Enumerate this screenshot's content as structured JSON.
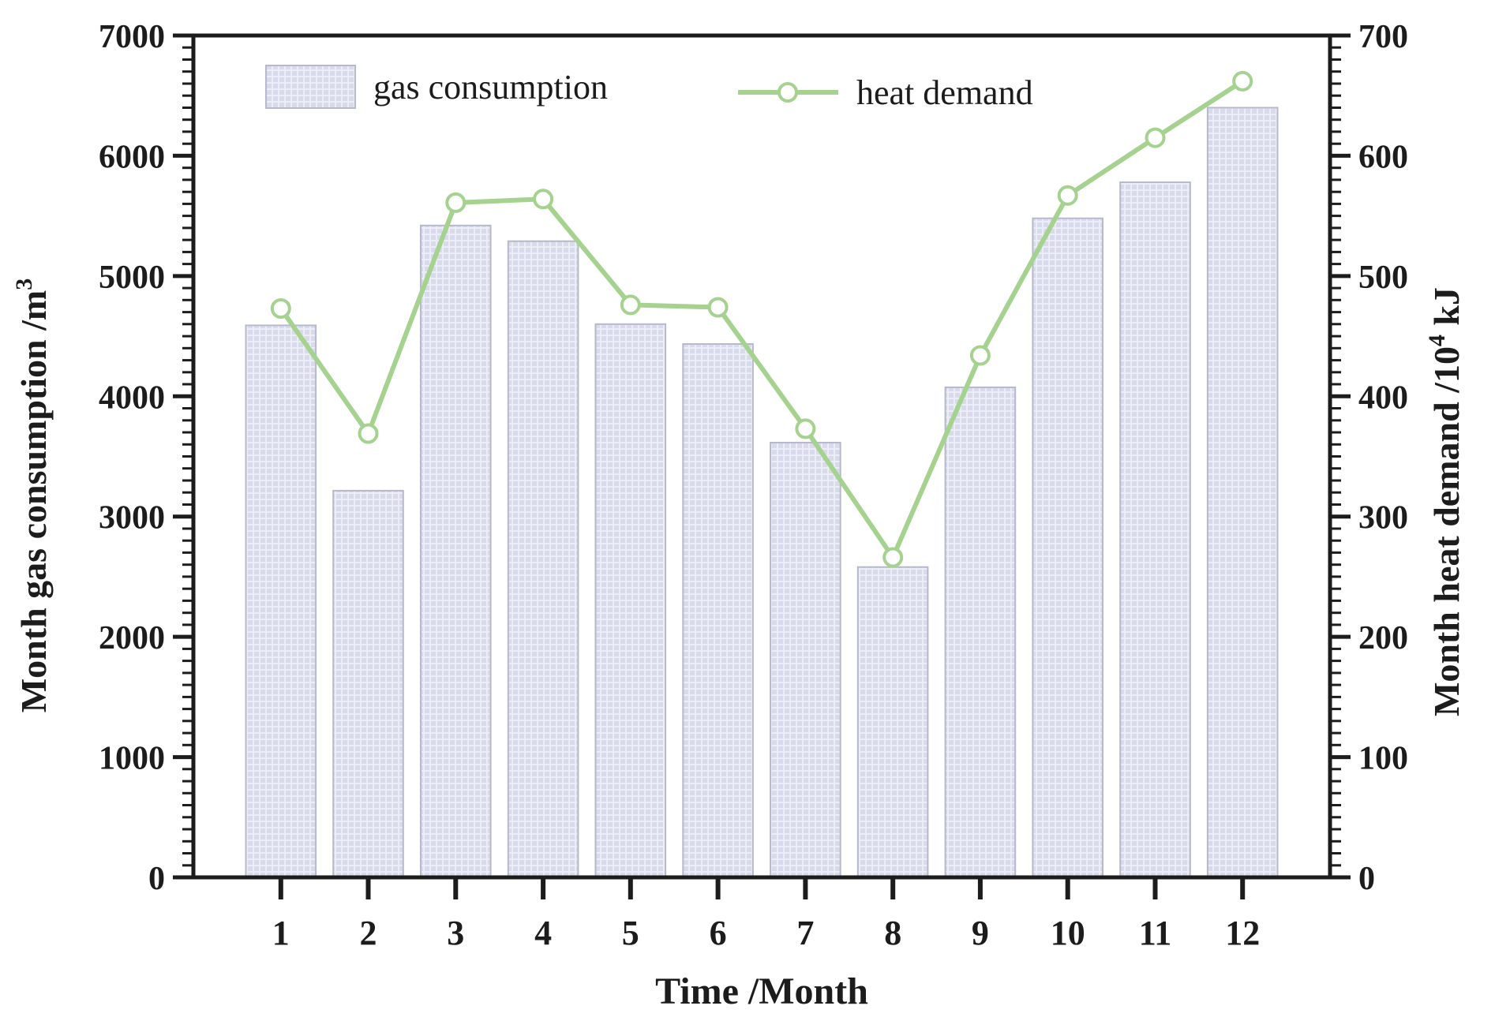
{
  "figure": {
    "background": "#ffffff",
    "legend": {
      "items": [
        {
          "label": "gas consumption",
          "swatch": "hatched-bar"
        },
        {
          "label": "heat demand",
          "swatch": "line-circle-marker"
        }
      ]
    }
  },
  "chart_data": {
    "type": "combo-bar-line",
    "categories": [
      1,
      2,
      3,
      4,
      5,
      6,
      7,
      8,
      9,
      10,
      11,
      12
    ],
    "series": [
      {
        "name": "gas consumption",
        "type": "bar",
        "axis": "left",
        "unit": "m3",
        "values": [
          4590,
          3215,
          5420,
          5290,
          4600,
          4435,
          3615,
          2580,
          4075,
          5480,
          5780,
          6400
        ]
      },
      {
        "name": "heat demand",
        "type": "line",
        "axis": "right",
        "unit": "10^4 kJ",
        "values": [
          473,
          369,
          561,
          564,
          476,
          474,
          373,
          266,
          434,
          567,
          615,
          662
        ]
      }
    ],
    "xlabel": "Time /Month",
    "ylabel_left": "Month gas consumption /m³",
    "ylabel_left_parts": [
      {
        "t": "Month gas consumption /m"
      },
      {
        "t": "3",
        "sup": true
      }
    ],
    "ylabel_right": "Month heat demand /10⁴ kJ",
    "ylabel_right_parts": [
      {
        "t": "Month heat demand /10"
      },
      {
        "t": "4",
        "sup": true
      },
      {
        "t": " kJ"
      }
    ],
    "ylim_left": [
      0,
      7000
    ],
    "ylim_right": [
      0,
      700
    ],
    "ytick_step_left": 1000,
    "ytick_step_right": 100,
    "minor_divisions_per_major": 10,
    "xlim": [
      0,
      13
    ],
    "grid": false,
    "legend_position": "top-inside",
    "colors": {
      "bar_fill": "#d9dbec",
      "bar_grid_line": "#eceef7",
      "bar_border": "#b6b9c9",
      "line": "#a5d28f",
      "marker_fill": "#ffffff",
      "marker_stroke": "#a5d28f",
      "spine": "#1c1c1c",
      "text": "#1c1c1c"
    }
  }
}
